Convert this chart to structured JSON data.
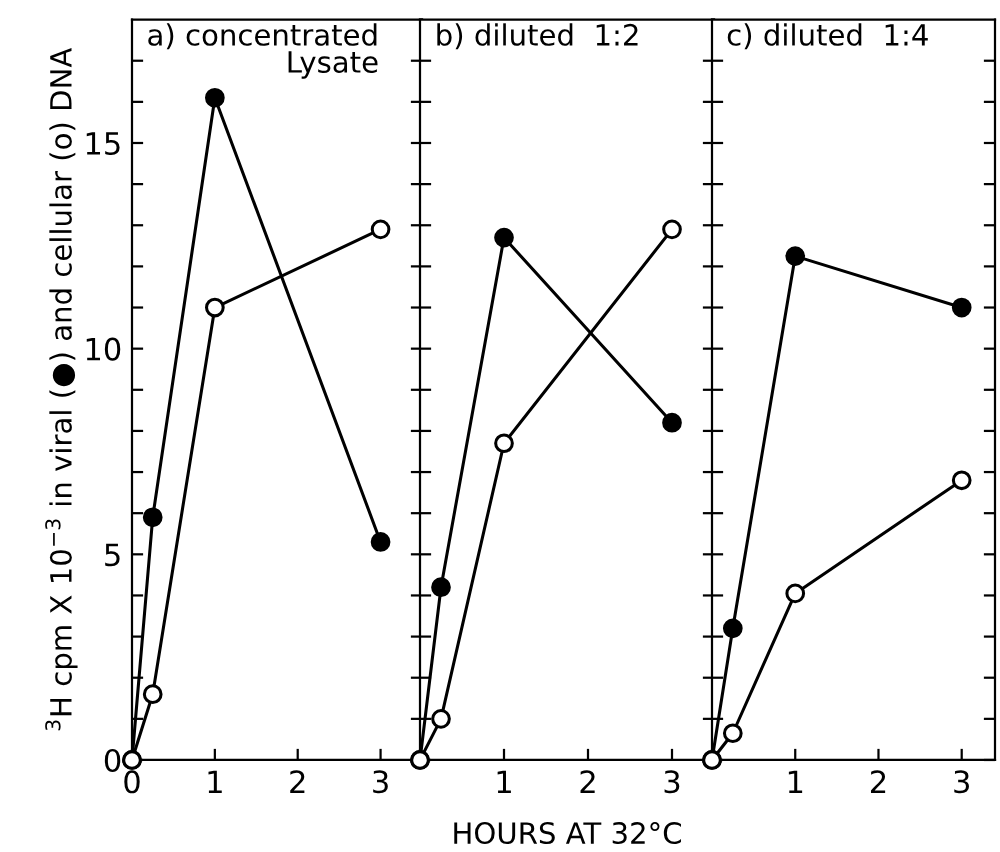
{
  "chart_data": [
    {
      "type": "line",
      "title": "a) concentrated\nLysate",
      "ylabel": "$^{3}$H cpm X 10$^{−3}$ in viral (●) and cellular (o) DNA",
      "xlim": [
        0,
        3.5
      ],
      "xticks": [
        0,
        1,
        2,
        3
      ],
      "ylim": [
        0,
        18
      ],
      "yticks": [
        0,
        {
          "value": 1,
          "label": null
        },
        {
          "value": 2,
          "label": null
        },
        {
          "value": 3,
          "label": null
        },
        {
          "value": 4,
          "label": null
        },
        5,
        {
          "value": 6,
          "label": null
        },
        {
          "value": 7,
          "label": null
        },
        {
          "value": 8,
          "label": null
        },
        {
          "value": 9,
          "label": null
        },
        10,
        {
          "value": 11,
          "label": null
        },
        {
          "value": 12,
          "label": null
        },
        {
          "value": 13,
          "label": null
        },
        {
          "value": 14,
          "label": null
        },
        15,
        {
          "value": 16,
          "label": null
        },
        {
          "value": 17,
          "label": null
        }
      ],
      "marker": "circle",
      "grid": false,
      "legend": false,
      "x": [
        0,
        0.25,
        1,
        3
      ],
      "series": [
        {
          "color": "#000000",
          "values": [
            0,
            5.9,
            16.1,
            5.3
          ]
        },
        {
          "color": "#000000",
          "colors": [
            "#ffffff",
            "#ffffff",
            "#ffffff",
            "#ffffff"
          ],
          "values": [
            0,
            1.6,
            11.0,
            12.9
          ]
        }
      ]
    },
    {
      "type": "line",
      "title": "b) diluted  1:2",
      "xlabel": "HOURS AT 32°C",
      "xlim": [
        0,
        3.5
      ],
      "xticks": [
        {
          "value": 0,
          "label": null
        },
        1,
        2,
        3
      ],
      "ylim": [
        0,
        18
      ],
      "yticks": [
        0,
        1,
        2,
        3,
        4,
        5,
        6,
        7,
        8,
        9,
        10,
        11,
        12,
        13,
        14,
        15,
        16,
        17
      ],
      "tick_labels": "x",
      "marker": "circle",
      "grid": false,
      "legend": false,
      "x": [
        0,
        0.25,
        1,
        3
      ],
      "series": [
        {
          "color": "#000000",
          "values": [
            0,
            4.2,
            12.7,
            8.2
          ]
        },
        {
          "color": "#000000",
          "colors": [
            "#ffffff",
            "#ffffff",
            "#ffffff",
            "#ffffff"
          ],
          "values": [
            0,
            1.0,
            7.7,
            12.9
          ]
        }
      ]
    },
    {
      "type": "line",
      "title": "c) diluted  1:4",
      "xlim": [
        0,
        3.4
      ],
      "xticks": [
        {
          "value": 0,
          "label": null
        },
        1,
        2,
        3
      ],
      "ylim": [
        0,
        18
      ],
      "yticks": [
        0,
        1,
        2,
        3,
        4,
        5,
        6,
        7,
        8,
        9,
        10,
        11,
        12,
        13,
        14,
        15,
        16,
        17
      ],
      "tick_labels": "x",
      "marker": "circle",
      "grid": false,
      "legend": false,
      "x": [
        0,
        0.25,
        1,
        3
      ],
      "series": [
        {
          "color": "#000000",
          "values": [
            0,
            3.2,
            12.25,
            11.0
          ]
        },
        {
          "color": "#000000",
          "colors": [
            "#ffffff",
            "#ffffff",
            "#ffffff",
            "#ffffff"
          ],
          "values": [
            0,
            0.65,
            4.05,
            6.8
          ]
        }
      ]
    }
  ]
}
